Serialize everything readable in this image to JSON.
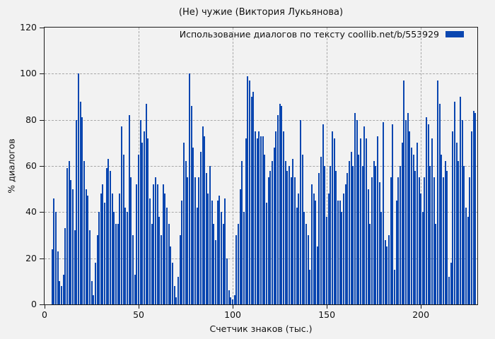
{
  "window": {
    "bg": "#f2f2f2"
  },
  "chart_data": {
    "type": "bar",
    "style": "impulses",
    "title": "(Не) чужие (Виктория Лукьянова)",
    "legend": {
      "label": "Использование диалогов по тексту  coollib.net/b/553929",
      "position": "top-right"
    },
    "xlabel": "Счетчик знаков (тыс.)",
    "ylabel": "% диалогов",
    "xlim": [
      0,
      230
    ],
    "ylim": [
      0,
      120
    ],
    "x_ticks": [
      0,
      50,
      100,
      150,
      200
    ],
    "y_ticks": [
      0,
      20,
      40,
      60,
      80,
      100,
      120
    ],
    "grid": true,
    "bar_color": "#0a46b0",
    "grid_color": "#a8a8a8",
    "x_start": 4,
    "x_step": 1,
    "values": [
      24,
      46,
      40,
      23,
      10,
      8,
      13,
      33,
      59,
      62,
      54,
      50,
      32,
      80,
      100,
      88,
      81,
      62,
      50,
      47,
      32,
      10,
      4,
      18,
      30,
      40,
      48,
      52,
      44,
      59,
      63,
      58,
      48,
      40,
      35,
      35,
      48,
      77,
      65,
      42,
      40,
      82,
      55,
      30,
      13,
      52,
      65,
      80,
      70,
      75,
      87,
      72,
      46,
      35,
      52,
      55,
      52,
      38,
      30,
      52,
      48,
      42,
      35,
      25,
      18,
      8,
      3,
      12,
      30,
      45,
      70,
      62,
      55,
      100,
      86,
      68,
      55,
      42,
      55,
      66,
      77,
      73,
      57,
      48,
      60,
      45,
      35,
      28,
      45,
      47,
      40,
      35,
      46,
      20,
      6,
      3,
      2,
      4,
      30,
      35,
      50,
      62,
      40,
      72,
      99,
      97,
      90,
      92,
      75,
      72,
      75,
      73,
      73,
      65,
      44,
      55,
      58,
      62,
      68,
      75,
      82,
      87,
      86,
      75,
      62,
      58,
      60,
      55,
      63,
      55,
      42,
      48,
      80,
      65,
      40,
      35,
      30,
      15,
      52,
      48,
      45,
      25,
      57,
      64,
      78,
      60,
      38,
      48,
      60,
      75,
      72,
      58,
      45,
      45,
      40,
      48,
      52,
      57,
      62,
      66,
      60,
      83,
      80,
      65,
      72,
      60,
      77,
      72,
      50,
      35,
      55,
      62,
      60,
      73,
      53,
      40,
      79,
      28,
      25,
      30,
      55,
      78,
      15,
      45,
      55,
      60,
      70,
      97,
      80,
      83,
      75,
      68,
      65,
      58,
      70,
      55,
      48,
      40,
      55,
      81,
      78,
      60,
      72,
      55,
      35,
      97,
      87,
      65,
      55,
      62,
      58,
      12,
      18,
      75,
      88,
      70,
      62,
      90,
      80,
      60,
      42,
      38,
      55,
      75,
      84,
      83
    ]
  }
}
